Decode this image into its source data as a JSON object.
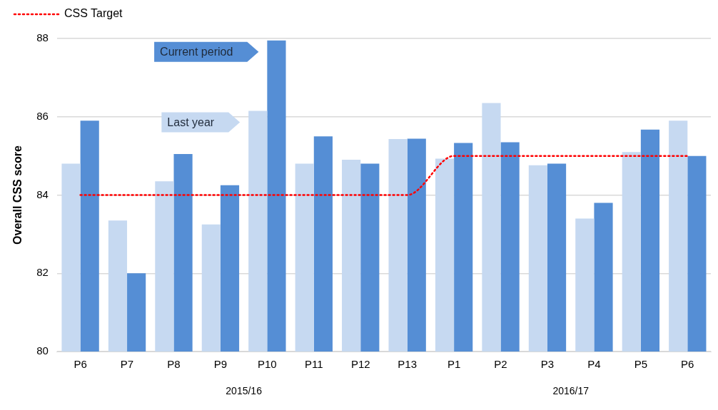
{
  "chart_data": {
    "type": "bar",
    "ylabel": "Overall CSS score",
    "categories": [
      "P6",
      "P7",
      "P8",
      "P9",
      "P10",
      "P11",
      "P12",
      "P13",
      "P1",
      "P2",
      "P3",
      "P4",
      "P5",
      "P6"
    ],
    "series": [
      {
        "name": "Last year",
        "color": "#c6d9f1",
        "values": [
          84.8,
          83.35,
          84.35,
          83.25,
          86.15,
          84.8,
          84.9,
          85.43,
          84.93,
          86.35,
          84.76,
          83.4,
          85.1,
          85.9
        ]
      },
      {
        "name": "Current period",
        "color": "#558ed5",
        "values": [
          85.9,
          82.0,
          85.05,
          84.25,
          87.95,
          85.5,
          84.8,
          85.44,
          85.33,
          85.35,
          84.8,
          83.8,
          85.67,
          85.0
        ]
      },
      {
        "name": "CSS Target",
        "type": "line",
        "color": "#ff0000",
        "line_style": "dotted",
        "values": [
          84,
          84,
          84,
          84,
          84,
          84,
          84,
          84,
          85,
          85,
          85,
          85,
          85,
          85
        ]
      }
    ],
    "ylim": [
      80,
      88
    ],
    "yticks": [
      80,
      82,
      84,
      86,
      88
    ],
    "grid": "y",
    "legend": "top left",
    "marker": "none",
    "annotations": [
      "2015/16",
      "2016/17"
    ]
  }
}
